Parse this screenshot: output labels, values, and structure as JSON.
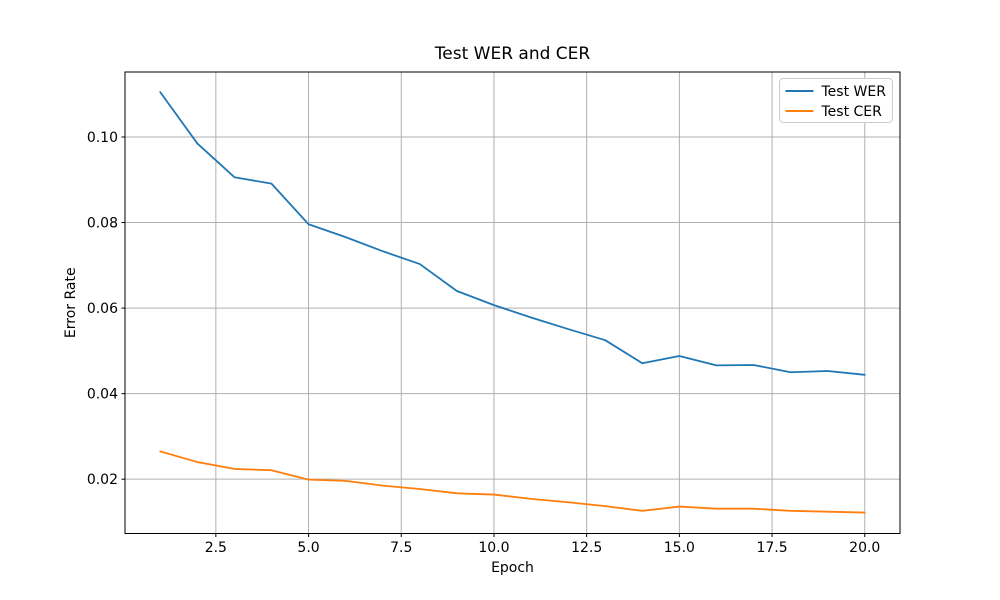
{
  "chart_data": {
    "type": "line",
    "title": "Test WER and CER",
    "xlabel": "Epoch",
    "ylabel": "Error Rate",
    "x": [
      1,
      2,
      3,
      4,
      5,
      6,
      7,
      8,
      9,
      10,
      11,
      12,
      13,
      14,
      15,
      16,
      17,
      18,
      19,
      20
    ],
    "series": [
      {
        "name": "Test WER",
        "color": "#1f77b4",
        "values": [
          0.1105,
          0.0985,
          0.0906,
          0.0891,
          0.0796,
          0.0766,
          0.0733,
          0.0703,
          0.064,
          0.0607,
          0.0578,
          0.0551,
          0.0525,
          0.0471,
          0.0488,
          0.0466,
          0.0467,
          0.045,
          0.0453,
          0.0444
        ]
      },
      {
        "name": "Test CER",
        "color": "#ff7f0e",
        "values": [
          0.0265,
          0.024,
          0.0224,
          0.0221,
          0.0199,
          0.0196,
          0.0185,
          0.0177,
          0.0167,
          0.0164,
          0.0154,
          0.0146,
          0.0137,
          0.0126,
          0.0136,
          0.0131,
          0.0131,
          0.0126,
          0.0124,
          0.0122
        ]
      }
    ],
    "xlim": [
      0.05,
      20.95
    ],
    "ylim": [
      0.0073,
      0.1152
    ],
    "xticks": [
      2.5,
      5.0,
      7.5,
      10.0,
      12.5,
      15.0,
      17.5,
      20.0
    ],
    "xtick_labels": [
      "2.5",
      "5.0",
      "7.5",
      "10.0",
      "12.5",
      "15.0",
      "17.5",
      "20.0"
    ],
    "yticks": [
      0.02,
      0.04,
      0.06,
      0.08,
      0.1
    ],
    "ytick_labels": [
      "0.02",
      "0.04",
      "0.06",
      "0.08",
      "0.10"
    ],
    "grid": true,
    "grid_color": "#b0b0b0",
    "legend_position": "upper right",
    "background": "#ffffff",
    "line_width": 1.8
  }
}
